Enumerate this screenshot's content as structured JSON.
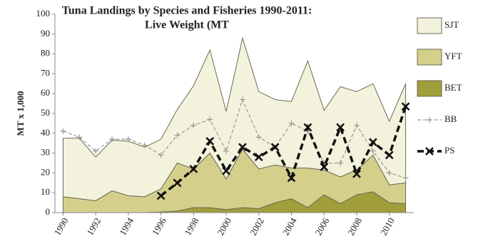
{
  "chart_data": {
    "type": "stacked-area-line",
    "title": [
      "Tuna Landings by Species and Fisheries 1990-2011:",
      "Live Weight (MT"
    ],
    "y_label": "MT x 1,000",
    "x": [
      1990,
      1991,
      1992,
      1993,
      1994,
      1995,
      1996,
      1997,
      1998,
      1999,
      2000,
      2001,
      2002,
      2003,
      2004,
      2005,
      2006,
      2007,
      2008,
      2009,
      2010,
      2011
    ],
    "xlim": [
      1989.5,
      2011.5
    ],
    "xticks": [
      1990,
      1992,
      1994,
      1996,
      1998,
      2000,
      2002,
      2004,
      2006,
      2008,
      2010
    ],
    "ylim": [
      0,
      100
    ],
    "yticks": [
      0,
      10,
      20,
      30,
      40,
      50,
      60,
      70,
      80,
      90,
      100
    ],
    "grid": false,
    "legend": "right",
    "series": [
      {
        "name": "BET",
        "kind": "area",
        "color": "#a19e3c",
        "values": [
          0,
          0,
          0,
          0,
          0,
          0,
          0.3,
          0.8,
          2.5,
          2.5,
          1.5,
          2.5,
          2,
          5,
          7,
          2.5,
          9,
          4.5,
          9,
          10.5,
          5,
          4.5
        ]
      },
      {
        "name": "YFT",
        "kind": "area",
        "color": "#d4d08c",
        "values": [
          8,
          7,
          6,
          11,
          8.5,
          8,
          11.7,
          24.2,
          19.5,
          27.5,
          15.5,
          29.5,
          20,
          19,
          15.5,
          20,
          12.5,
          13.5,
          12.5,
          18.5,
          9,
          10.5
        ]
      },
      {
        "name": "SJT",
        "kind": "area",
        "color": "#f3f2dd",
        "values": [
          29.5,
          30.5,
          22,
          25.5,
          27.5,
          25,
          25,
          27,
          42,
          52,
          34,
          56,
          39,
          33,
          33.5,
          54,
          30,
          45.5,
          39.5,
          36,
          32,
          50
        ]
      },
      {
        "name": "BB",
        "kind": "line",
        "color": "#9a9a9a",
        "values": [
          41,
          38,
          31,
          37,
          37,
          34,
          29,
          39,
          44,
          47,
          31,
          57,
          38,
          33,
          45,
          41,
          25,
          25,
          44,
          31,
          20,
          17.5
        ]
      },
      {
        "name": "PS",
        "kind": "line",
        "color": "#111111",
        "values": [
          null,
          null,
          null,
          null,
          null,
          null,
          8.5,
          15,
          22,
          36,
          21,
          33,
          28,
          33,
          17.5,
          43,
          23,
          43,
          19.5,
          35.5,
          29,
          53.5
        ]
      }
    ]
  }
}
